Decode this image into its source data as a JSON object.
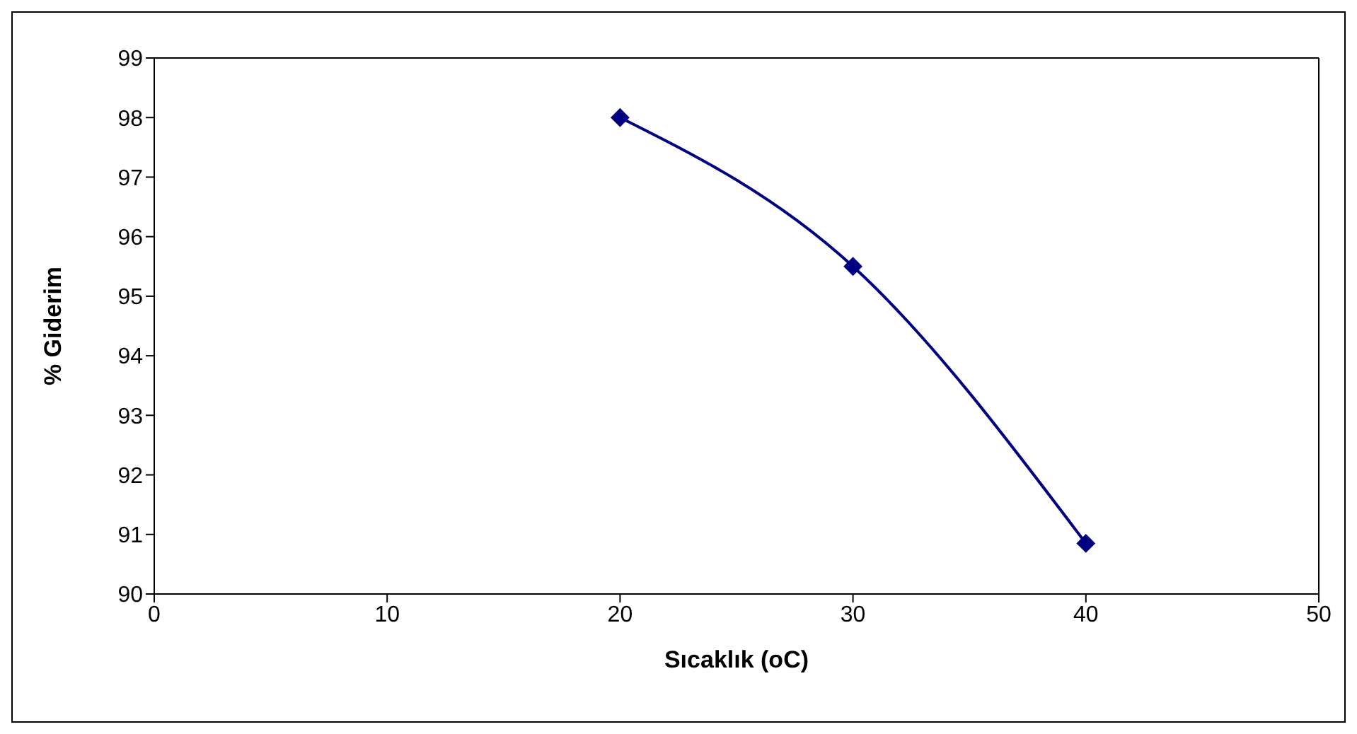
{
  "chart_data": {
    "type": "line",
    "xlabel": "Sıcaklık (oC)",
    "ylabel": "% Giderim",
    "x": [
      20,
      30,
      40
    ],
    "series": [
      {
        "color": "#000080",
        "values": [
          98.0,
          95.5,
          90.85
        ]
      }
    ],
    "xlim": [
      0,
      50
    ],
    "xticks": [
      0,
      10,
      20,
      30,
      40,
      50
    ],
    "ylim": [
      90,
      99
    ],
    "yticks": [
      90,
      91,
      92,
      93,
      94,
      95,
      96,
      97,
      98,
      99
    ],
    "marker": "diamond",
    "line_style": "solid"
  }
}
